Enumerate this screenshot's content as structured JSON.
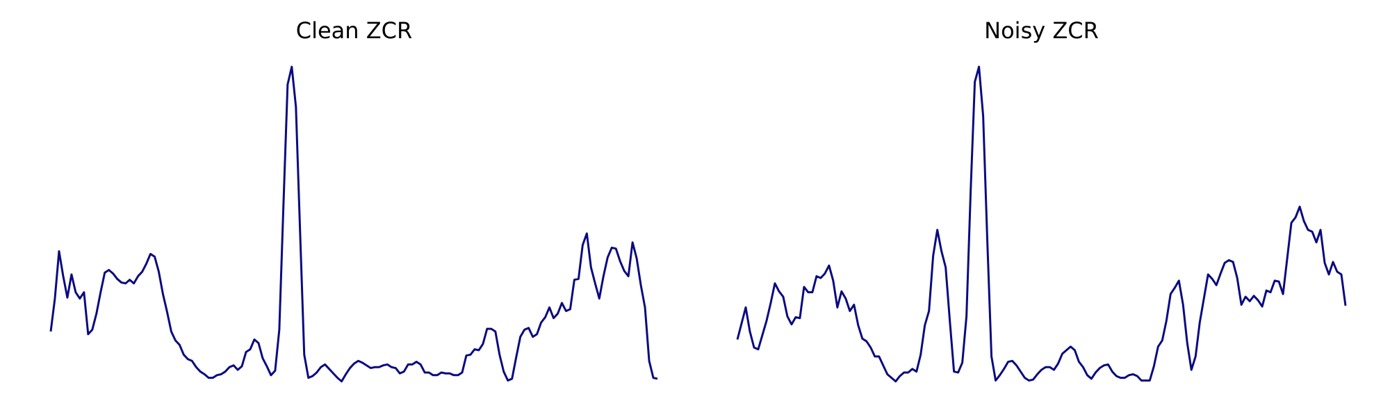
{
  "chart_data": [
    {
      "type": "line",
      "title": "Clean ZCR",
      "color": "#0a0a80",
      "ylim": [
        0,
        0.4
      ],
      "values": [
        0.078,
        0.115,
        0.168,
        0.14,
        0.116,
        0.142,
        0.122,
        0.115,
        0.122,
        0.075,
        0.08,
        0.098,
        0.122,
        0.144,
        0.147,
        0.143,
        0.137,
        0.133,
        0.132,
        0.136,
        0.132,
        0.14,
        0.145,
        0.154,
        0.165,
        0.162,
        0.145,
        0.12,
        0.1,
        0.078,
        0.068,
        0.063,
        0.052,
        0.047,
        0.045,
        0.038,
        0.033,
        0.03,
        0.026,
        0.026,
        0.029,
        0.03,
        0.033,
        0.038,
        0.04,
        0.035,
        0.039,
        0.055,
        0.058,
        0.069,
        0.065,
        0.048,
        0.039,
        0.029,
        0.034,
        0.08,
        0.22,
        0.355,
        0.375,
        0.33,
        0.19,
        0.052,
        0.026,
        0.028,
        0.032,
        0.038,
        0.041,
        0.036,
        0.031,
        0.026,
        0.022,
        0.03,
        0.037,
        0.042,
        0.045,
        0.043,
        0.04,
        0.037,
        0.038,
        0.038,
        0.04,
        0.041,
        0.038,
        0.037,
        0.031,
        0.033,
        0.041,
        0.041,
        0.044,
        0.041,
        0.032,
        0.032,
        0.029,
        0.029,
        0.032,
        0.031,
        0.031,
        0.029,
        0.029,
        0.032,
        0.051,
        0.052,
        0.058,
        0.057,
        0.064,
        0.081,
        0.081,
        0.078,
        0.052,
        0.033,
        0.023,
        0.025,
        0.049,
        0.072,
        0.08,
        0.082,
        0.072,
        0.075,
        0.088,
        0.094,
        0.105,
        0.093,
        0.098,
        0.11,
        0.101,
        0.103,
        0.136,
        0.137,
        0.175,
        0.188,
        0.15,
        0.132,
        0.115,
        0.14,
        0.161,
        0.172,
        0.171,
        0.157,
        0.146,
        0.14,
        0.178,
        0.16,
        0.13,
        0.105,
        0.045,
        0.026,
        0.025
      ]
    },
    {
      "type": "line",
      "title": "Noisy ZCR",
      "color": "#0a0a80",
      "ylim": [
        0,
        0.4
      ],
      "values": [
        0.069,
        0.087,
        0.105,
        0.078,
        0.06,
        0.058,
        0.074,
        0.09,
        0.11,
        0.132,
        0.123,
        0.117,
        0.095,
        0.086,
        0.094,
        0.093,
        0.128,
        0.122,
        0.122,
        0.14,
        0.138,
        0.143,
        0.152,
        0.135,
        0.105,
        0.123,
        0.115,
        0.101,
        0.108,
        0.085,
        0.07,
        0.067,
        0.06,
        0.05,
        0.05,
        0.04,
        0.03,
        0.026,
        0.022,
        0.028,
        0.032,
        0.032,
        0.036,
        0.033,
        0.052,
        0.085,
        0.101,
        0.163,
        0.192,
        0.168,
        0.15,
        0.09,
        0.033,
        0.032,
        0.043,
        0.095,
        0.235,
        0.358,
        0.375,
        0.32,
        0.18,
        0.05,
        0.023,
        0.029,
        0.036,
        0.044,
        0.045,
        0.04,
        0.033,
        0.026,
        0.023,
        0.024,
        0.03,
        0.035,
        0.038,
        0.038,
        0.035,
        0.042,
        0.053,
        0.057,
        0.061,
        0.057,
        0.044,
        0.038,
        0.029,
        0.025,
        0.032,
        0.037,
        0.04,
        0.041,
        0.033,
        0.028,
        0.026,
        0.026,
        0.029,
        0.03,
        0.028,
        0.023,
        0.023,
        0.023,
        0.039,
        0.061,
        0.068,
        0.09,
        0.12,
        0.127,
        0.135,
        0.108,
        0.065,
        0.035,
        0.05,
        0.088,
        0.115,
        0.142,
        0.137,
        0.13,
        0.143,
        0.155,
        0.158,
        0.156,
        0.138,
        0.108,
        0.117,
        0.112,
        0.118,
        0.113,
        0.106,
        0.124,
        0.122,
        0.135,
        0.134,
        0.12,
        0.16,
        0.2,
        0.206,
        0.218,
        0.202,
        0.192,
        0.19,
        0.178,
        0.192,
        0.155,
        0.142,
        0.156,
        0.145,
        0.142,
        0.107
      ]
    }
  ]
}
